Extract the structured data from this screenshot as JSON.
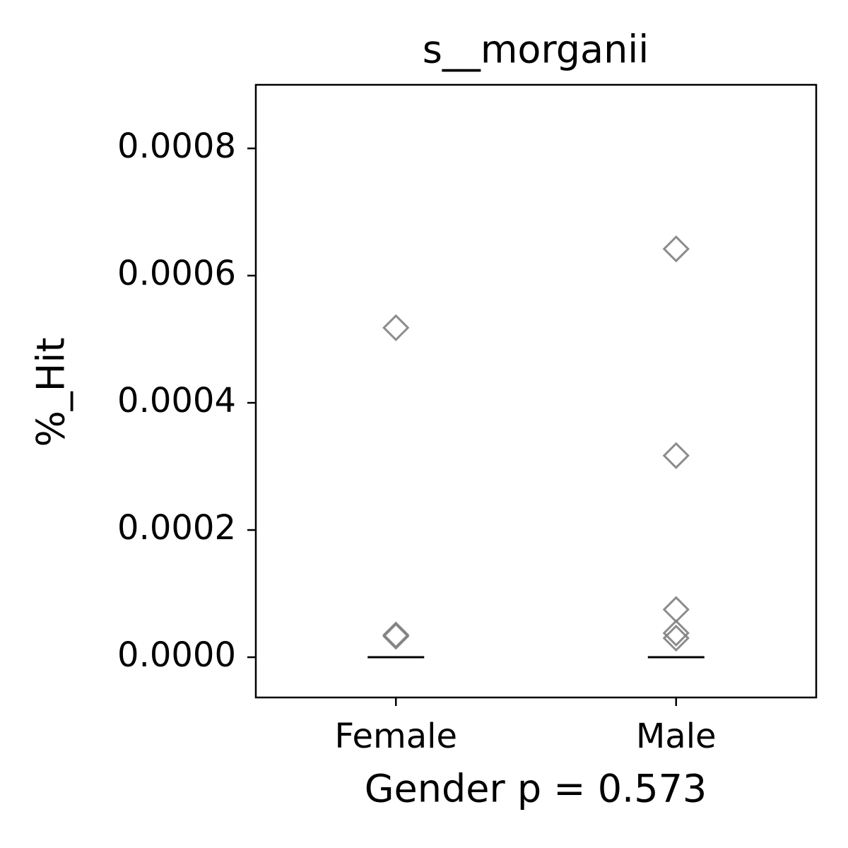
{
  "chart_data": {
    "type": "strip",
    "title": "s__morganii",
    "xlabel": "Gender p = 0.573",
    "ylabel": "%_Hit",
    "categories": [
      "Female",
      "Male"
    ],
    "values": [
      [
        0.000518,
        3.5e-05,
        3.3e-05
      ],
      [
        0.000642,
        0.000317,
        7.5e-05,
        3.8e-05,
        3e-05
      ]
    ],
    "medians": [
      0,
      0
    ],
    "marker": "diamond",
    "color": "#808080",
    "median_color": "#000000",
    "ylim": [
      -6.33e-05,
      0.0009
    ],
    "yticks": [
      {
        "value": 0,
        "label": "0.0000"
      },
      0.0002,
      0.0004,
      0.0006,
      0.0008
    ]
  }
}
